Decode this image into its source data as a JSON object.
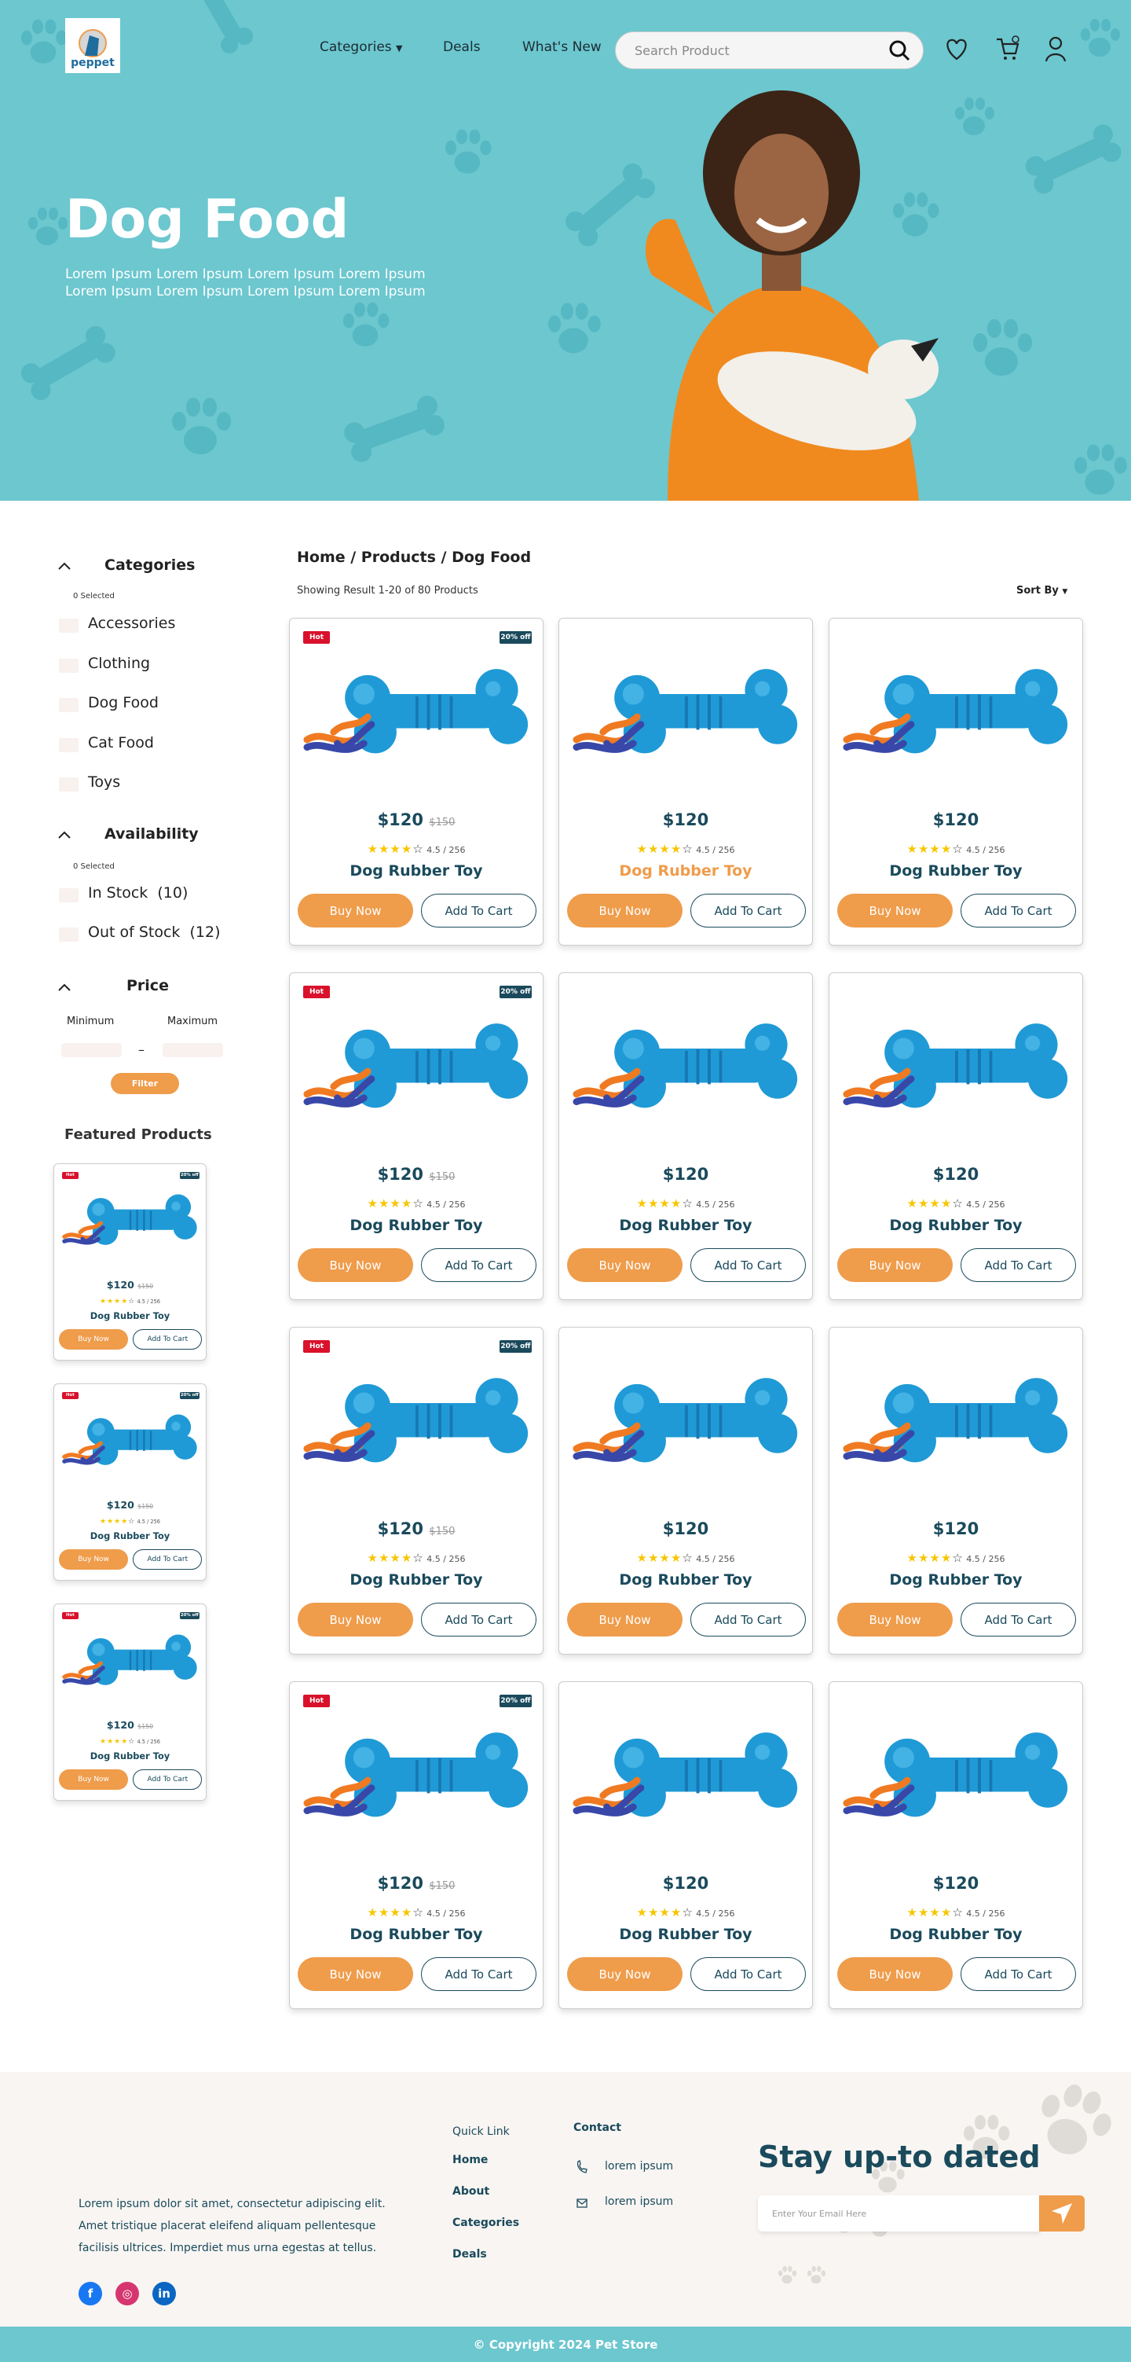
{
  "colors": {
    "accent": "#ef9c4b",
    "primary": "#1a4a5c",
    "hero_bg": "#6cc7cf",
    "hot": "#d9112b"
  },
  "header": {
    "logo_text": "peppet",
    "nav": [
      {
        "label": "Categories",
        "icon": "caret-down-icon"
      },
      {
        "label": "Deals"
      },
      {
        "label": "What's New"
      }
    ],
    "search_placeholder": "Search Product",
    "icons": [
      "search-icon",
      "heart-icon",
      "cart-icon",
      "user-icon"
    ]
  },
  "hero": {
    "title": "Dog Food",
    "subtitle": "Lorem Ipsum Lorem Ipsum Lorem Ipsum Lorem Ipsum Lorem Ipsum Lorem Ipsum Lorem Ipsum Lorem Ipsum"
  },
  "sidebar": {
    "categories": {
      "title": "Categories",
      "selected": "0 Selected",
      "items": [
        "Accessories",
        "Clothing",
        "Dog Food",
        "Cat Food",
        "Toys"
      ]
    },
    "availability": {
      "title": "Availability",
      "selected": "0 Selected",
      "items": [
        "In Stock  (10)",
        "Out of Stock  (12)"
      ]
    },
    "price": {
      "title": "Price",
      "min_label": "Minimum",
      "max_label": "Maximum",
      "separator": "–",
      "filter_label": "Filter"
    },
    "featured_title": "Featured Products"
  },
  "main": {
    "breadcrumb": "Home / Products / Dog Food",
    "results": "Showing Result 1-20 of 80 Products",
    "sort_label": "Sort By"
  },
  "product": {
    "name": "Dog Rubber Toy",
    "price": "$120",
    "old_price": "$150",
    "rating": "4.5 / 256",
    "stars": 4,
    "hot_label": "Hot",
    "discount_label": "20% off",
    "buy_label": "Buy Now",
    "cart_label": "Add To Cart"
  },
  "products": [
    {
      "badges": true,
      "hover": false
    },
    {
      "badges": false,
      "hover": true
    },
    {
      "badges": false,
      "hover": false
    },
    {
      "badges": true,
      "hover": false
    },
    {
      "badges": false,
      "hover": false
    },
    {
      "badges": false,
      "hover": false
    },
    {
      "badges": true,
      "hover": false
    },
    {
      "badges": false,
      "hover": false
    },
    {
      "badges": false,
      "hover": false
    },
    {
      "badges": true,
      "hover": false
    },
    {
      "badges": false,
      "hover": false
    },
    {
      "badges": false,
      "hover": false
    }
  ],
  "featured": [
    {
      "badges": true
    },
    {
      "badges": true
    },
    {
      "badges": true
    }
  ],
  "footer": {
    "about": [
      "Lorem ipsum dolor sit amet, consectetur adipiscing elit.",
      "Amet tristique placerat eleifend aliquam pellentesque",
      "facilisis ultrices. Imperdiet mus urna egestas at tellus."
    ],
    "social": [
      "facebook-icon",
      "instagram-icon",
      "linkedin-icon"
    ],
    "quick_title": "Quick Link",
    "quick_links": [
      "Home",
      "About",
      "Categories",
      "Deals"
    ],
    "contact_title": "Contact",
    "phone": "lorem ipsum",
    "email": "lorem ipsum",
    "newsletter_title": "Stay up-to dated",
    "email_placeholder": "Enter Your Email Here",
    "copyright": "© Copyright 2024 Pet Store"
  }
}
